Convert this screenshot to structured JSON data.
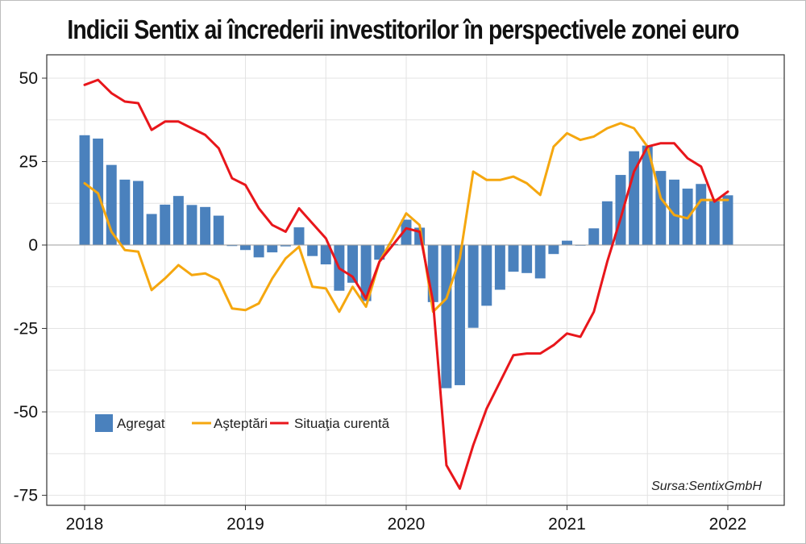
{
  "chart_data": {
    "type": "bar+line",
    "title": "Indicii Sentix ai încrederii investitorilor în perspectivele zonei euro",
    "source": "Sursa:SentixGmbH",
    "xlabel": "",
    "ylabel": "",
    "ylim": [
      -78,
      57
    ],
    "yticks": [
      "50",
      "25",
      "0",
      "-25",
      "-50",
      "-75"
    ],
    "ytick_values": [
      50,
      25,
      0,
      -25,
      -50,
      -75
    ],
    "xticks": [
      "2018",
      "2019",
      "2020",
      "2021",
      "2022"
    ],
    "xtick_values": [
      0,
      12,
      24,
      36,
      48
    ],
    "grid": true,
    "legend": {
      "placement": "bottom-left",
      "entries": [
        "Agregat",
        "Aşteptări",
        "Situaţia curentă"
      ]
    },
    "series": [
      {
        "name": "Agregat",
        "kind": "bar",
        "color": "#4a81bd",
        "x": [
          0,
          1,
          2,
          3,
          4,
          5,
          6,
          7,
          8,
          9,
          10,
          11,
          12,
          13,
          14,
          15,
          16,
          17,
          18,
          19,
          20,
          21,
          22,
          23,
          24,
          25,
          26,
          27,
          28,
          29,
          30,
          31,
          32,
          33,
          34,
          35,
          36,
          37,
          38,
          39,
          40,
          41,
          42,
          43,
          44,
          45,
          46,
          47,
          48
        ],
        "values": [
          32.9,
          31.9,
          24.0,
          19.6,
          19.2,
          9.3,
          12.1,
          14.7,
          12.0,
          11.4,
          8.8,
          -0.3,
          -1.5,
          -3.7,
          -2.2,
          -0.4,
          5.3,
          -3.3,
          -5.8,
          -13.7,
          -11.3,
          -16.8,
          -4.4,
          0.3,
          7.6,
          5.2,
          -17.1,
          -42.9,
          -42.0,
          -24.8,
          -18.2,
          -13.4,
          -8.0,
          -8.4,
          -10.0,
          -2.7,
          1.3,
          -0.2,
          5.0,
          13.1,
          21.0,
          28.1,
          29.8,
          22.2,
          19.6,
          16.9,
          18.3,
          13.5,
          14.9
        ]
      },
      {
        "name": "Aşteptări",
        "kind": "line",
        "color": "#f5a70f",
        "x": [
          0,
          1,
          2,
          3,
          4,
          5,
          6,
          7,
          8,
          9,
          10,
          11,
          12,
          13,
          14,
          15,
          16,
          17,
          18,
          19,
          20,
          21,
          22,
          23,
          24,
          25,
          26,
          27,
          28,
          29,
          30,
          31,
          32,
          33,
          34,
          35,
          36,
          37,
          38,
          39,
          40,
          41,
          42,
          43,
          44,
          45,
          46,
          47,
          48
        ],
        "values": [
          18.5,
          15.5,
          4.0,
          -1.5,
          -2.0,
          -13.5,
          -10.0,
          -6.0,
          -9.0,
          -8.5,
          -10.5,
          -19.0,
          -19.5,
          -17.5,
          -10.0,
          -4.0,
          -0.5,
          -12.5,
          -13.0,
          -20.0,
          -12.5,
          -18.5,
          -5.0,
          2.0,
          9.5,
          6.0,
          -20.0,
          -16.0,
          -4.0,
          22.0,
          19.5,
          19.5,
          20.5,
          18.5,
          15.0,
          29.5,
          33.5,
          31.5,
          32.5,
          35.0,
          36.5,
          35.0,
          29.5,
          14.0,
          9.0,
          8.0,
          13.5,
          13.5,
          13.5
        ]
      },
      {
        "name": "Situaţia curentă",
        "kind": "line",
        "color": "#e8161b",
        "x": [
          0,
          1,
          2,
          3,
          4,
          5,
          6,
          7,
          8,
          9,
          10,
          11,
          12,
          13,
          14,
          15,
          16,
          17,
          18,
          19,
          20,
          21,
          22,
          23,
          24,
          25,
          26,
          27,
          28,
          29,
          30,
          31,
          32,
          33,
          34,
          35,
          36,
          37,
          38,
          39,
          40,
          41,
          42,
          43,
          44,
          45,
          46,
          47,
          48
        ],
        "values": [
          48.0,
          49.5,
          45.5,
          43.0,
          42.5,
          34.5,
          37.0,
          37.0,
          35.0,
          33.0,
          29.0,
          20.0,
          18.0,
          11.0,
          6.0,
          4.0,
          11.0,
          6.5,
          2.0,
          -7.0,
          -9.5,
          -16.0,
          -5.0,
          0.0,
          5.0,
          4.0,
          -17.0,
          -66.0,
          -73.0,
          -60.0,
          -49.0,
          -41.0,
          -33.0,
          -32.5,
          -32.5,
          -30.0,
          -26.5,
          -27.5,
          -20.0,
          -5.0,
          8.0,
          22.0,
          29.5,
          30.5,
          30.5,
          26.0,
          23.5,
          13.0,
          16.0
        ]
      }
    ]
  }
}
